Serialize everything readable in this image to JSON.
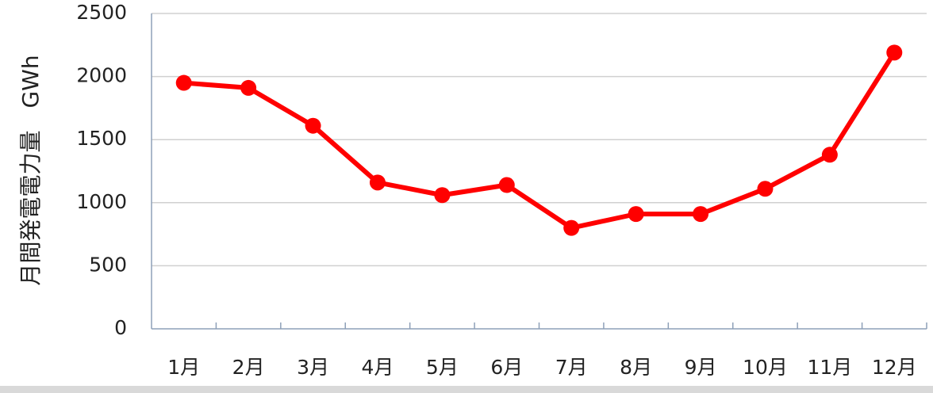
{
  "chart_data": {
    "type": "line",
    "y_axis_label": "月間発電電力量　GWh",
    "categories": [
      "1月",
      "2月",
      "3月",
      "4月",
      "5月",
      "6月",
      "7月",
      "8月",
      "9月",
      "10月",
      "11月",
      "12月"
    ],
    "series": [
      {
        "name": "月間発電電力量",
        "color": "#ff0000",
        "values": [
          1950,
          1910,
          1610,
          1160,
          1060,
          1140,
          800,
          910,
          910,
          1110,
          1380,
          2190
        ]
      }
    ],
    "ylim": [
      0,
      2500
    ],
    "yticks": [
      0,
      500,
      1000,
      1500,
      2000,
      2500
    ],
    "grid": true
  }
}
